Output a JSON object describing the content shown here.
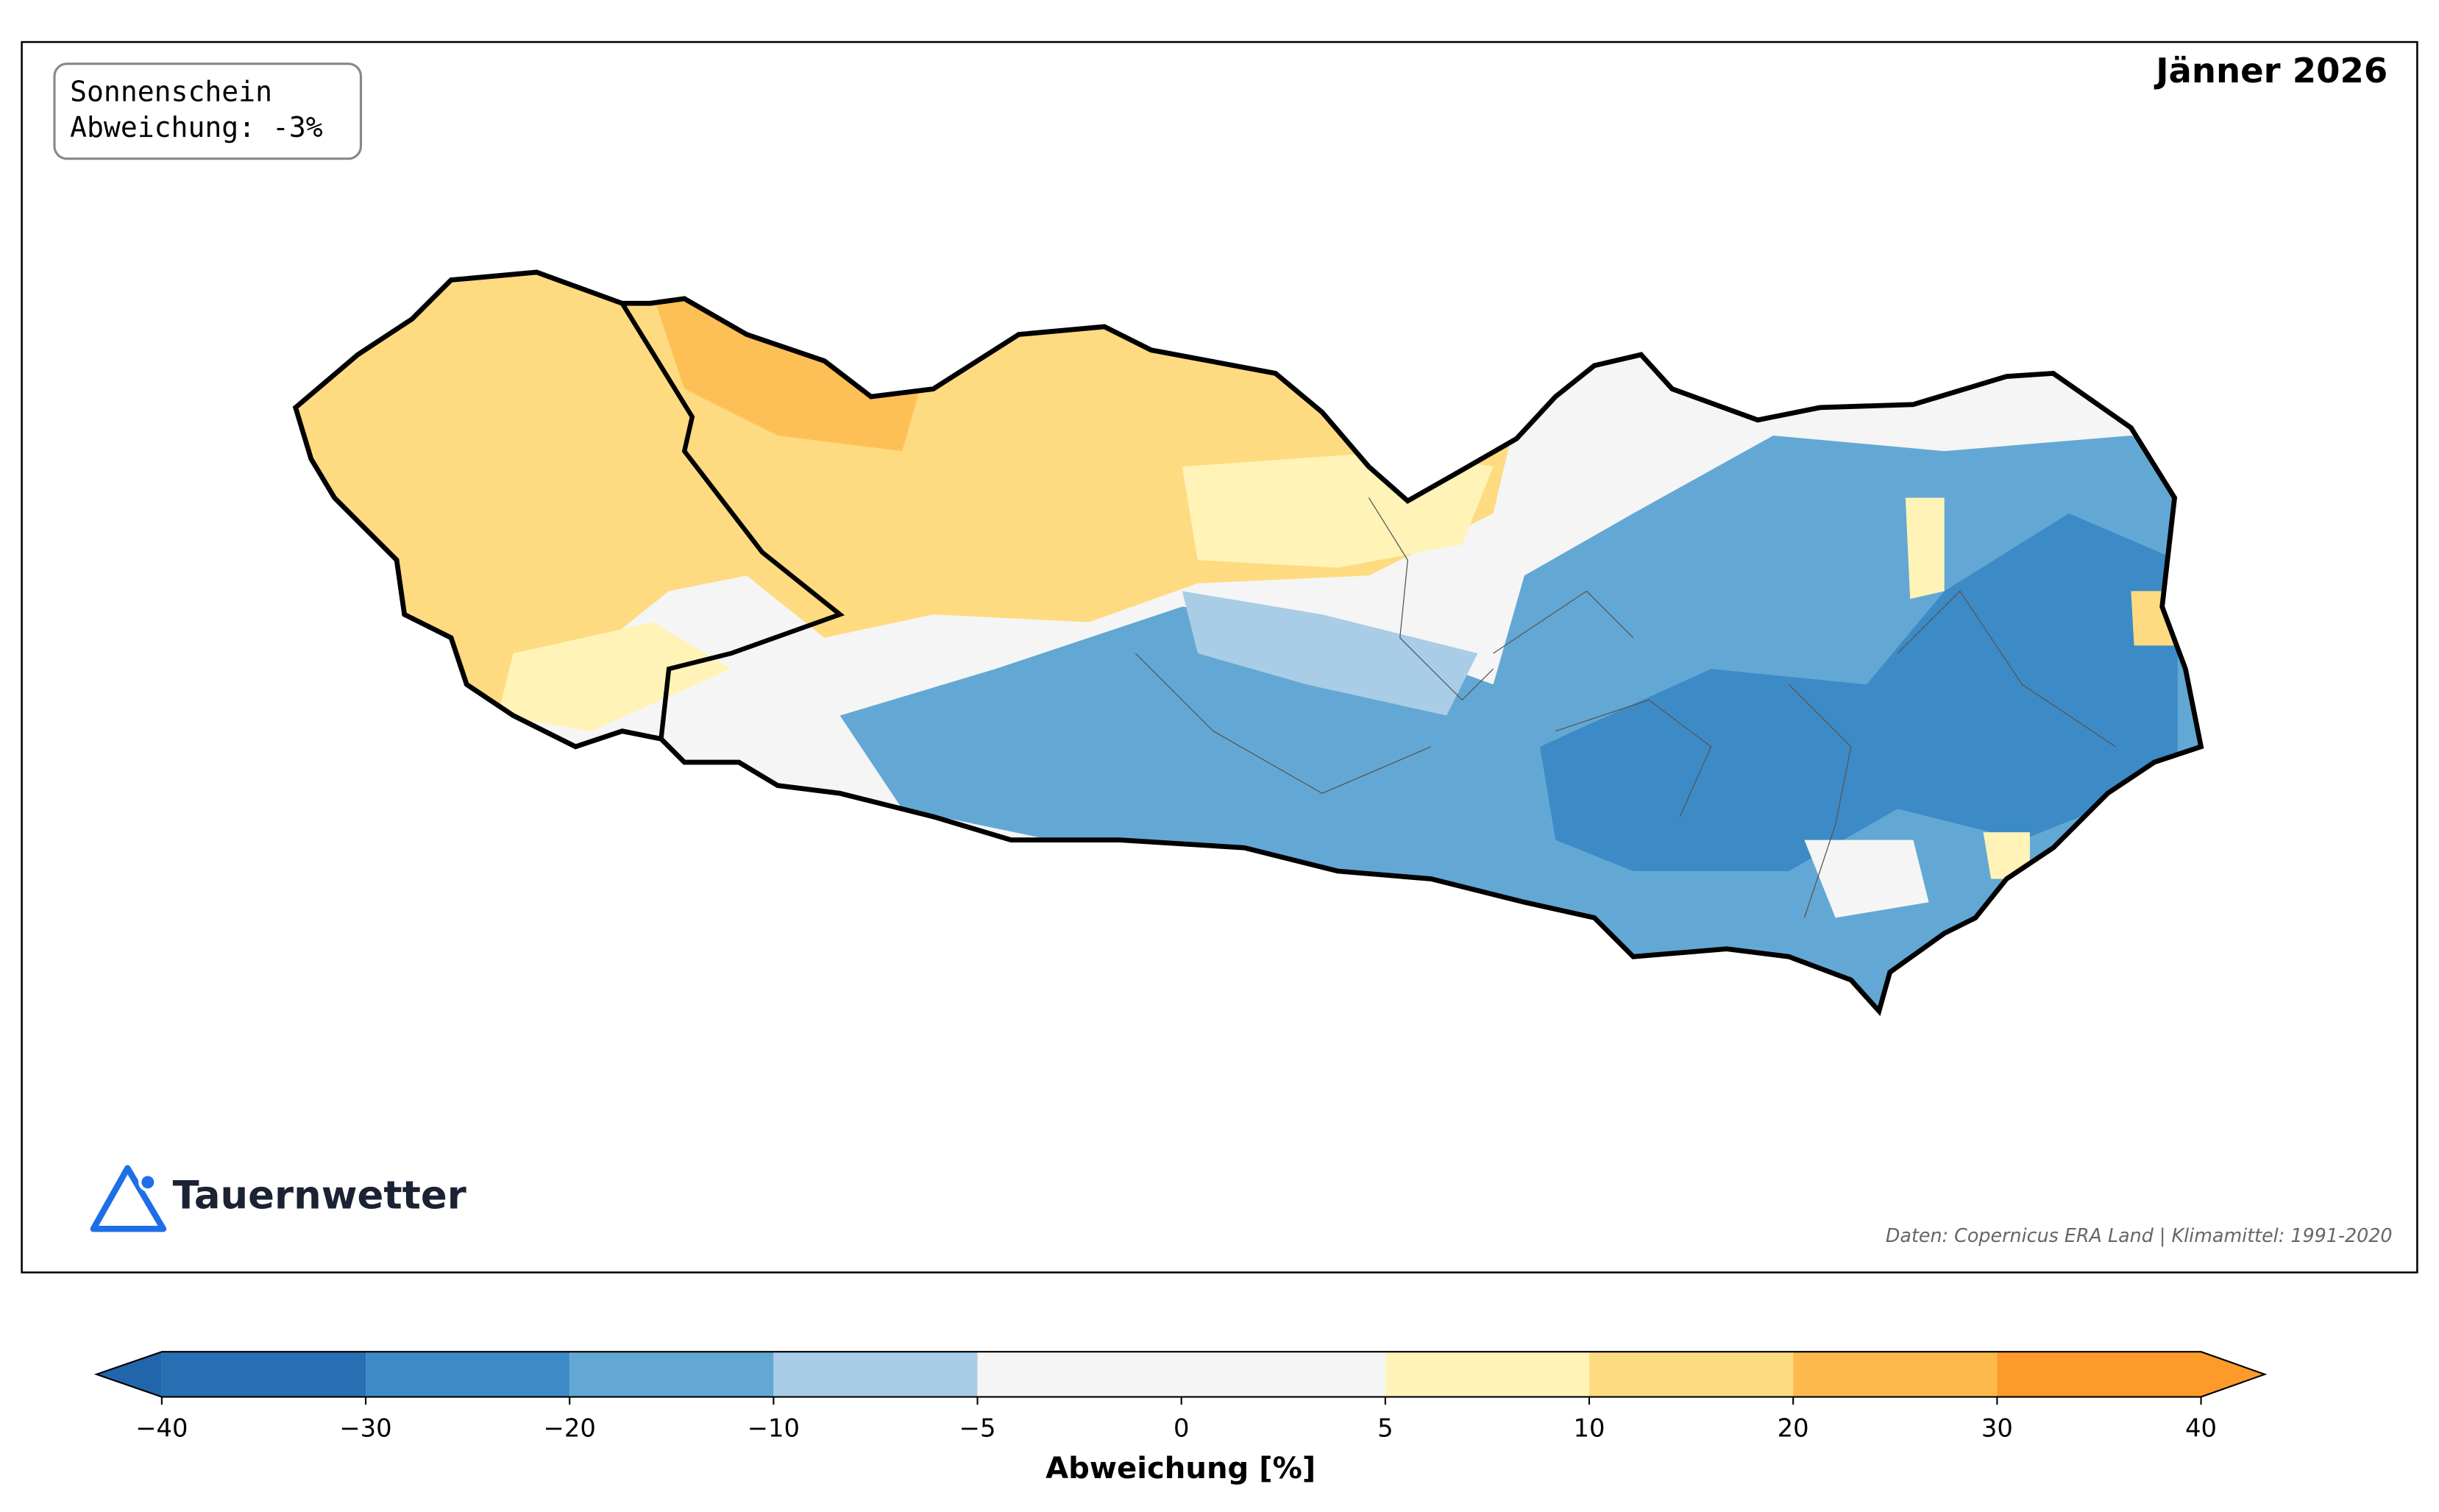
{
  "title": "Jänner 2026",
  "info_box": {
    "lines": [
      "Sonnenschein",
      "Abweichung: -3%"
    ]
  },
  "logo": "Tauernwetter",
  "source": "Daten: Copernicus ERA Land | Klimamittel: 1991-2020",
  "colorbar": {
    "label": "Abweichung [%]",
    "boundaries": [
      -40,
      -30,
      -20,
      -10,
      -5,
      5,
      10,
      20,
      30,
      40
    ],
    "colors": [
      "#2870b4",
      "#3d8bc6",
      "#63a8d4",
      "#a9cde6",
      "#f5f5f5",
      "#fff3b8",
      "#fedb80",
      "#fdb94c",
      "#fc9a2a"
    ],
    "under_color": "#2166ac",
    "over_color": "#fd9a2a",
    "ticks": [
      {
        "value": -40,
        "label": "−40"
      },
      {
        "value": -30,
        "label": "−30"
      },
      {
        "value": -20,
        "label": "−20"
      },
      {
        "value": -10,
        "label": "−10"
      },
      {
        "value": -5,
        "label": "−5"
      },
      0,
      5,
      10,
      20,
      30,
      40
    ]
  }
}
